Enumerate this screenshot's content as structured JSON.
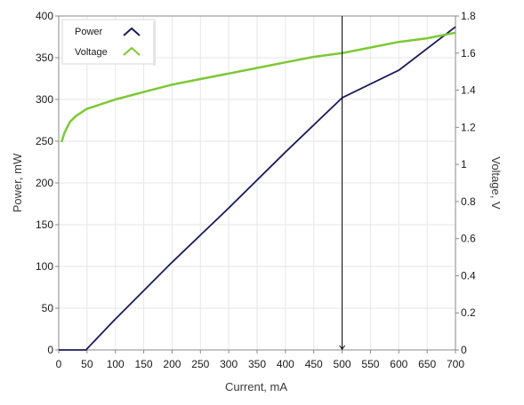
{
  "chart_data": {
    "type": "line",
    "xlabel": "Current, mA",
    "ylabel_left": "Power, mW",
    "ylabel_right": "Voltage, V",
    "xlim": [
      0,
      700
    ],
    "ylim_left": [
      0,
      400
    ],
    "ylim_right": [
      0,
      1.8
    ],
    "x_ticks": [
      "0",
      "50",
      "100",
      "150",
      "200",
      "250",
      "300",
      "350",
      "400",
      "450",
      "500",
      "550",
      "600",
      "650",
      "700"
    ],
    "y_left_ticks": [
      "0",
      "50",
      "100",
      "150",
      "200",
      "250",
      "300",
      "350",
      "400"
    ],
    "y_right_ticks": [
      "0",
      "0.2",
      "0.4",
      "0.6",
      "0.8",
      "1",
      "1.2",
      "1.4",
      "1.6",
      "1.8"
    ],
    "grid": true,
    "legend_position": "top-left",
    "cursor_x": 500,
    "series": [
      {
        "name": "Power",
        "axis": "left",
        "color": "#1c1c5c",
        "x": [
          0,
          48,
          100,
          200,
          300,
          400,
          500,
          600,
          700
        ],
        "y": [
          0,
          0,
          37,
          105,
          170,
          237,
          302,
          335,
          387
        ]
      },
      {
        "name": "Voltage",
        "axis": "right",
        "color": "#7dc833",
        "x": [
          5,
          10,
          15,
          20,
          30,
          40,
          50,
          60,
          80,
          100,
          150,
          200,
          250,
          300,
          350,
          400,
          450,
          500,
          550,
          600,
          650,
          700
        ],
        "y": [
          1.12,
          1.17,
          1.2,
          1.23,
          1.26,
          1.28,
          1.3,
          1.31,
          1.33,
          1.35,
          1.39,
          1.43,
          1.46,
          1.49,
          1.52,
          1.55,
          1.58,
          1.6,
          1.63,
          1.66,
          1.68,
          1.71
        ]
      }
    ]
  }
}
